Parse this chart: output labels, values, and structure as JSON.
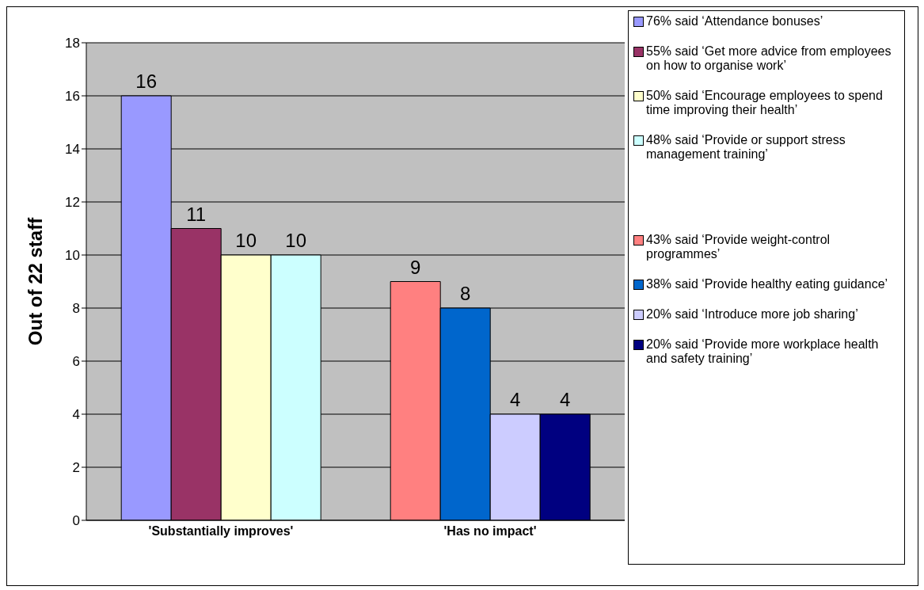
{
  "chart_data": {
    "type": "bar",
    "ylabel": "Out of 22 staff",
    "categories": [
      "'Substantially improves'",
      "'Has no impact'"
    ],
    "series": [
      {
        "name": "76% said ‘Attendance bonuses’",
        "color": "#9999ff",
        "values": [
          16,
          null
        ]
      },
      {
        "name": "55% said ‘Get more advice from employees on how to organise work’",
        "color": "#993366",
        "values": [
          11,
          null
        ]
      },
      {
        "name": "50% said ‘Encourage employees to spend time improving their health’",
        "color": "#ffffcc",
        "values": [
          10,
          null
        ]
      },
      {
        "name": "48% said ‘Provide or support stress management training’",
        "color": "#ccffff",
        "values": [
          10,
          null
        ]
      },
      {
        "name": "43% said ‘Provide weight-control programmes’",
        "color": "#ff8080",
        "values": [
          null,
          9
        ]
      },
      {
        "name": "38% said ‘Provide healthy eating guidance’",
        "color": "#0066cc",
        "values": [
          null,
          8
        ]
      },
      {
        "name": "20% said ‘Introduce more job sharing’",
        "color": "#ccccff",
        "values": [
          null,
          4
        ]
      },
      {
        "name": "20% said ‘Provide more workplace health and safety training’",
        "color": "#000080",
        "values": [
          null,
          4
        ]
      }
    ],
    "ylim": [
      0,
      18
    ],
    "yticks": [
      0,
      2,
      4,
      6,
      8,
      10,
      12,
      14,
      16,
      18
    ],
    "grid": "y",
    "legend": "right",
    "data_labels": true
  }
}
